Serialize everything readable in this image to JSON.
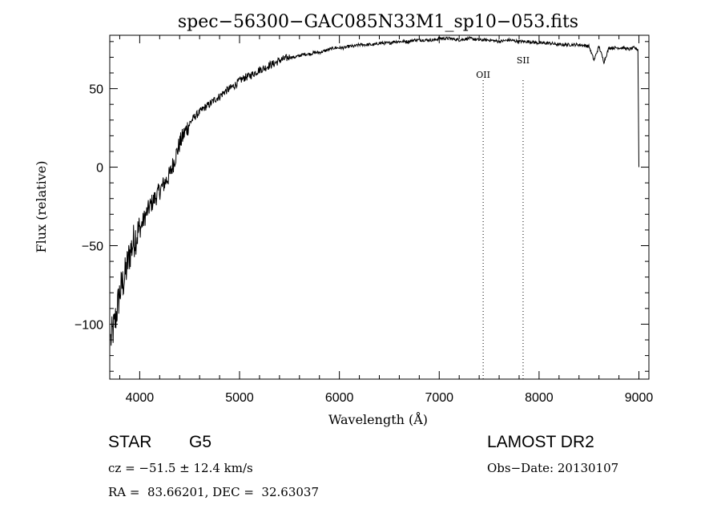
{
  "chart_data": {
    "type": "line",
    "title": "spec−56300−GAC085N33M1_sp10−053.fits",
    "xlabel": "Wavelength (Å)",
    "ylabel": "Flux (relative)",
    "xlim": [
      3700,
      9100
    ],
    "ylim": [
      -135,
      84
    ],
    "x_ticks": [
      4000,
      5000,
      6000,
      7000,
      8000,
      9000
    ],
    "y_ticks": [
      -100,
      -50,
      0,
      50
    ],
    "y_tick_labels": [
      "−100",
      "−50",
      "0",
      "50"
    ],
    "grid": false,
    "series": [
      {
        "x": [
          3710,
          3750,
          3800,
          3850,
          3900,
          3950,
          4000,
          4050,
          4100,
          4150,
          4200,
          4250,
          4300,
          4350,
          4400,
          4450,
          4500,
          4550,
          4600,
          4650,
          4700,
          4750,
          4800,
          4850,
          4900,
          4950,
          5000,
          5050,
          5100,
          5150,
          5200,
          5250,
          5300,
          5350,
          5400,
          5450,
          5500,
          5550,
          5600,
          5650,
          5700,
          5750,
          5800,
          5850,
          5900,
          5950,
          6000,
          6050,
          6100,
          6150,
          6200,
          6250,
          6300,
          6350,
          6400,
          6450,
          6500,
          6550,
          6600,
          6650,
          6700,
          6750,
          6800,
          6850,
          6900,
          6950,
          7000,
          7100,
          7200,
          7300,
          7400,
          7500,
          7600,
          7700,
          7800,
          7900,
          8000,
          8100,
          8200,
          8300,
          8400,
          8500,
          8550,
          8600,
          8650,
          8700,
          8750,
          8800,
          8850,
          8900,
          8950,
          8990,
          9000
        ],
        "y": [
          -110,
          -100,
          -80,
          -70,
          -55,
          -45,
          -40,
          -32,
          -25,
          -20,
          -15,
          -10,
          -5,
          5,
          15,
          22,
          28,
          32,
          35,
          38,
          40,
          43,
          45,
          48,
          50,
          52,
          55,
          57,
          58,
          60,
          62,
          63,
          65,
          66,
          68,
          69,
          70,
          70,
          71,
          72,
          72,
          73,
          73,
          74,
          75,
          76,
          76,
          76,
          77,
          77,
          78,
          78,
          78,
          78,
          79,
          79,
          79,
          80,
          80,
          80,
          80,
          81,
          81,
          81,
          81,
          81,
          82,
          82,
          81,
          82,
          81,
          81,
          80,
          81,
          80,
          80,
          79,
          79,
          78,
          78,
          78,
          77,
          68,
          77,
          67,
          76,
          76,
          76,
          76,
          75,
          76,
          75,
          0
        ]
      }
    ],
    "annotations": [
      {
        "label": "OII",
        "x": 7440
      },
      {
        "label": "SII",
        "x": 7840
      }
    ]
  },
  "info": {
    "class": "STAR",
    "subclass": "G5",
    "cz": "cz = −51.5 ± 12.4 km/s",
    "radec": "RA =  83.66201, DEC =  32.63037",
    "survey": "LAMOST DR2",
    "obsdate": "Obs−Date: 20130107"
  }
}
